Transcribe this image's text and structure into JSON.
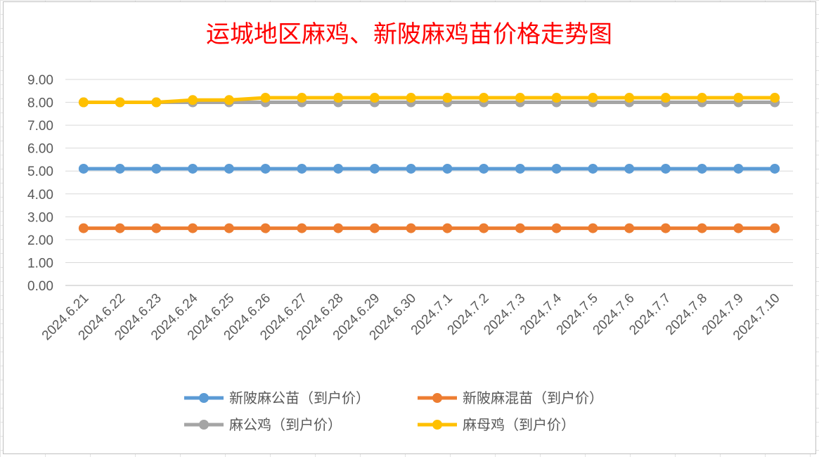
{
  "chart_data": {
    "type": "line",
    "title": "运城地区麻鸡、新陂麻鸡苗价格走势图",
    "xlabel": "",
    "ylabel": "",
    "ylim": [
      0,
      9
    ],
    "y_ticks": [
      "0.00",
      "1.00",
      "2.00",
      "3.00",
      "4.00",
      "5.00",
      "6.00",
      "7.00",
      "8.00",
      "9.00"
    ],
    "grid": true,
    "legend_position": "bottom",
    "categories": [
      "2024.6.21",
      "2024.6.22",
      "2024.6.23",
      "2024.6.24",
      "2024.6.25",
      "2024.6.26",
      "2024.6.27",
      "2024.6.28",
      "2024.6.29",
      "2024.6.30",
      "2024.7.1",
      "2024.7.2",
      "2024.7.3",
      "2024.7.4",
      "2024.7.5",
      "2024.7.6",
      "2024.7.7",
      "2024.7.8",
      "2024.7.9",
      "2024.7.10"
    ],
    "series": [
      {
        "name": "新陂麻公苗（到户价）",
        "color": "#5b9bd5",
        "values": [
          5.1,
          5.1,
          5.1,
          5.1,
          5.1,
          5.1,
          5.1,
          5.1,
          5.1,
          5.1,
          5.1,
          5.1,
          5.1,
          5.1,
          5.1,
          5.1,
          5.1,
          5.1,
          5.1,
          5.1
        ]
      },
      {
        "name": "新陂麻混苗（到户价）",
        "color": "#ed7d31",
        "values": [
          2.5,
          2.5,
          2.5,
          2.5,
          2.5,
          2.5,
          2.5,
          2.5,
          2.5,
          2.5,
          2.5,
          2.5,
          2.5,
          2.5,
          2.5,
          2.5,
          2.5,
          2.5,
          2.5,
          2.5
        ]
      },
      {
        "name": "麻公鸡（到户价）",
        "color": "#a5a5a5",
        "values": [
          8.0,
          8.0,
          8.0,
          8.0,
          8.0,
          8.0,
          8.0,
          8.0,
          8.0,
          8.0,
          8.0,
          8.0,
          8.0,
          8.0,
          8.0,
          8.0,
          8.0,
          8.0,
          8.0,
          8.0
        ]
      },
      {
        "name": "麻母鸡（到户价）",
        "color": "#ffc000",
        "values": [
          8.0,
          8.0,
          8.0,
          8.1,
          8.1,
          8.2,
          8.2,
          8.2,
          8.2,
          8.2,
          8.2,
          8.2,
          8.2,
          8.2,
          8.2,
          8.2,
          8.2,
          8.2,
          8.2,
          8.2
        ]
      }
    ]
  }
}
